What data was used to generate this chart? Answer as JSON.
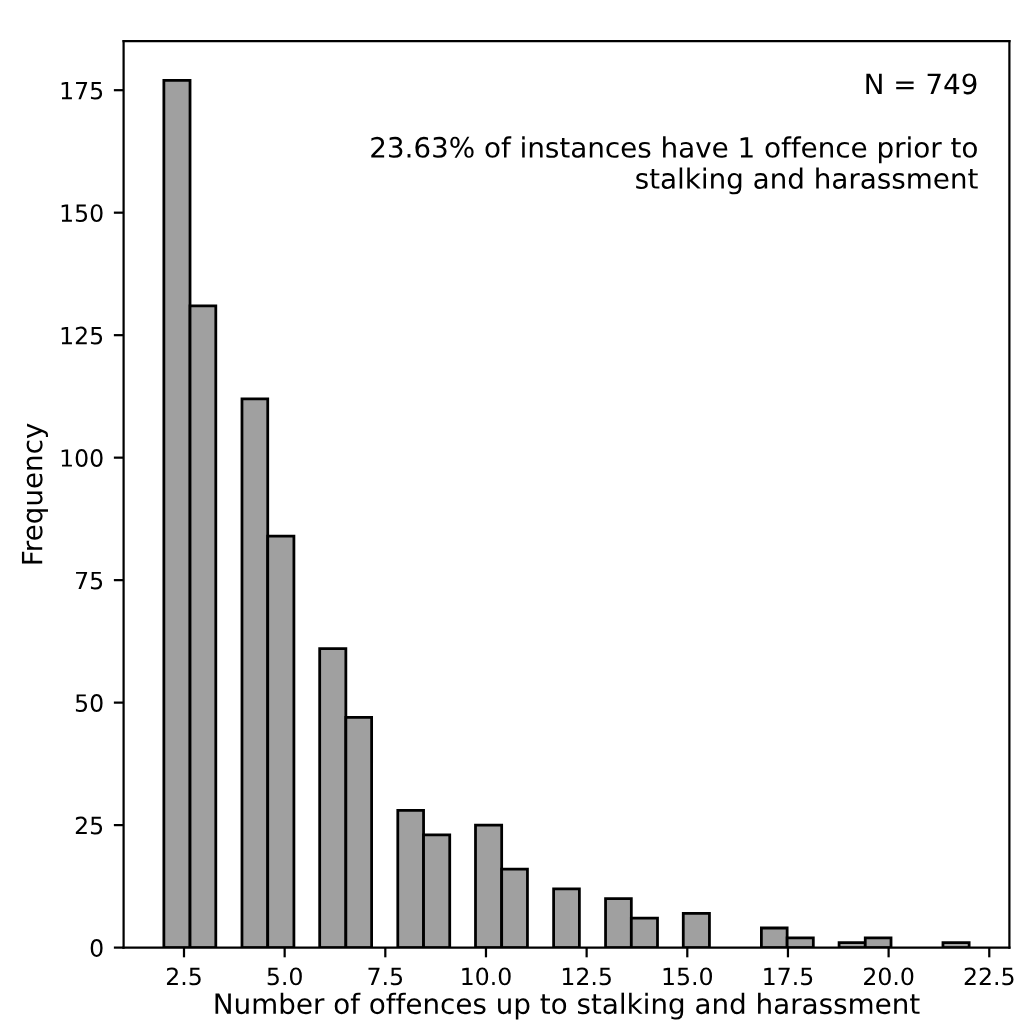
{
  "chart_data": {
    "type": "histogram",
    "xlabel": "Number of offences up to stalking and harassment",
    "ylabel": "Frequency",
    "annotations": [
      "N = 749",
      "23.63% of instances have 1 offence prior to\nstalking and harassment"
    ],
    "bins": [
      2,
      2.65,
      3.29,
      3.94,
      4.58,
      5.23,
      5.87,
      6.52,
      7.16,
      7.81,
      8.45,
      9.1,
      9.74,
      10.39,
      11.03,
      11.68,
      12.32,
      12.97,
      13.61,
      14.26,
      14.9,
      15.55,
      16.19,
      16.84,
      17.48,
      18.13,
      18.77,
      19.42,
      20.06,
      20.71,
      21.35,
      22
    ],
    "values": [
      177,
      131,
      0,
      112,
      84,
      0,
      61,
      47,
      0,
      28,
      23,
      0,
      25,
      16,
      0,
      12,
      0,
      10,
      6,
      0,
      7,
      0,
      0,
      4,
      2,
      0,
      1,
      2,
      0,
      0,
      1
    ],
    "color": "#a0a0a0",
    "xlim": [
      1,
      23
    ],
    "xticks": [
      {
        "value": 2.5,
        "label": "2.5"
      },
      {
        "value": 5,
        "label": "5.0"
      },
      {
        "value": 7.5,
        "label": "7.5"
      },
      {
        "value": 10,
        "label": "10.0"
      },
      {
        "value": 12.5,
        "label": "12.5"
      },
      {
        "value": 15,
        "label": "15.0"
      },
      {
        "value": 17.5,
        "label": "17.5"
      },
      {
        "value": 20,
        "label": "20.0"
      },
      {
        "value": 22.5,
        "label": "22.5"
      }
    ],
    "ylim": [
      0,
      185
    ],
    "yticks": [
      0,
      25,
      50,
      75,
      100,
      125,
      150,
      175
    ],
    "grid": false
  }
}
